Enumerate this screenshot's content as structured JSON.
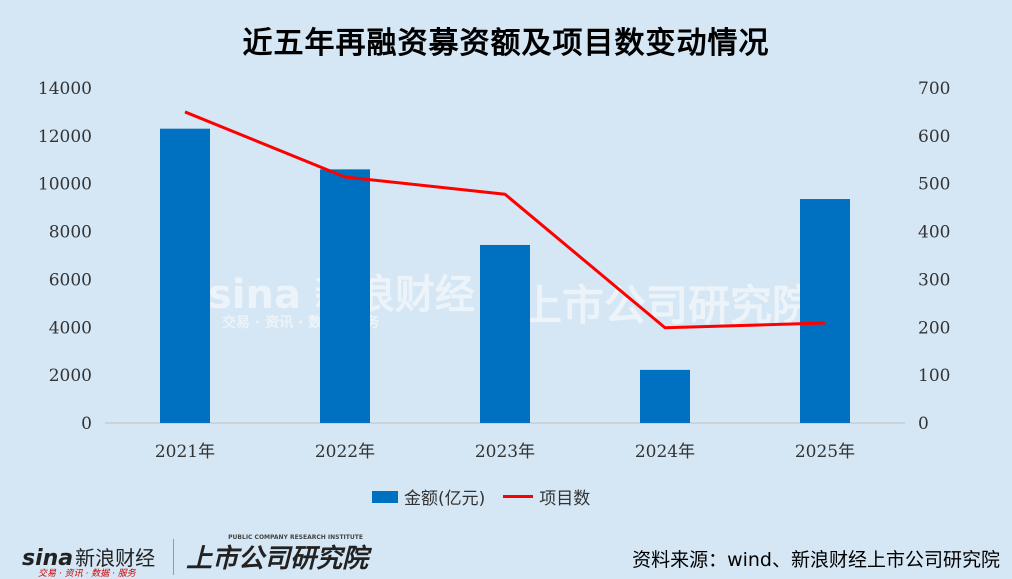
{
  "chart_data": {
    "type": "bar+line",
    "title": "近五年再融资募资额及项目数变动情况",
    "categories": [
      "2021年",
      "2022年",
      "2023年",
      "2024年",
      "2025年"
    ],
    "series": [
      {
        "name": "金额(亿元)",
        "type": "bar",
        "axis": "left",
        "color": "#0070c0",
        "values": [
          12300,
          10600,
          7440,
          2220,
          9360
        ]
      },
      {
        "name": "项目数",
        "type": "line",
        "axis": "right",
        "color": "#ff0000",
        "values": [
          650,
          514,
          478,
          199,
          209
        ]
      }
    ],
    "y_left": {
      "ylim": [
        0,
        14000
      ],
      "ticks": [
        0,
        2000,
        4000,
        6000,
        8000,
        10000,
        12000,
        14000
      ]
    },
    "y_right": {
      "ylim": [
        0,
        700
      ],
      "ticks": [
        0,
        100,
        200,
        300,
        400,
        500,
        600,
        700
      ]
    },
    "grid": false,
    "legend_position": "bottom"
  },
  "watermarks": {
    "sina": "sina 新浪财经",
    "sina_sub": "交易 · 资讯 · 数据 · 服务",
    "institute": "上市公司研究院",
    "institute_en": "PUBLIC COMPANY RESEARCH INSTITUTE"
  },
  "footer": {
    "source": "资料来源：wind、新浪财经上市公司研究院",
    "logo_sina": "sina",
    "logo_sina_cn": "新浪财经",
    "logo_sub": "交易 · 资讯 · 数据 · 服务",
    "logo_institute": "上市公司研究院",
    "logo_institute_en": "PUBLIC COMPANY RESEARCH INSTITUTE"
  }
}
